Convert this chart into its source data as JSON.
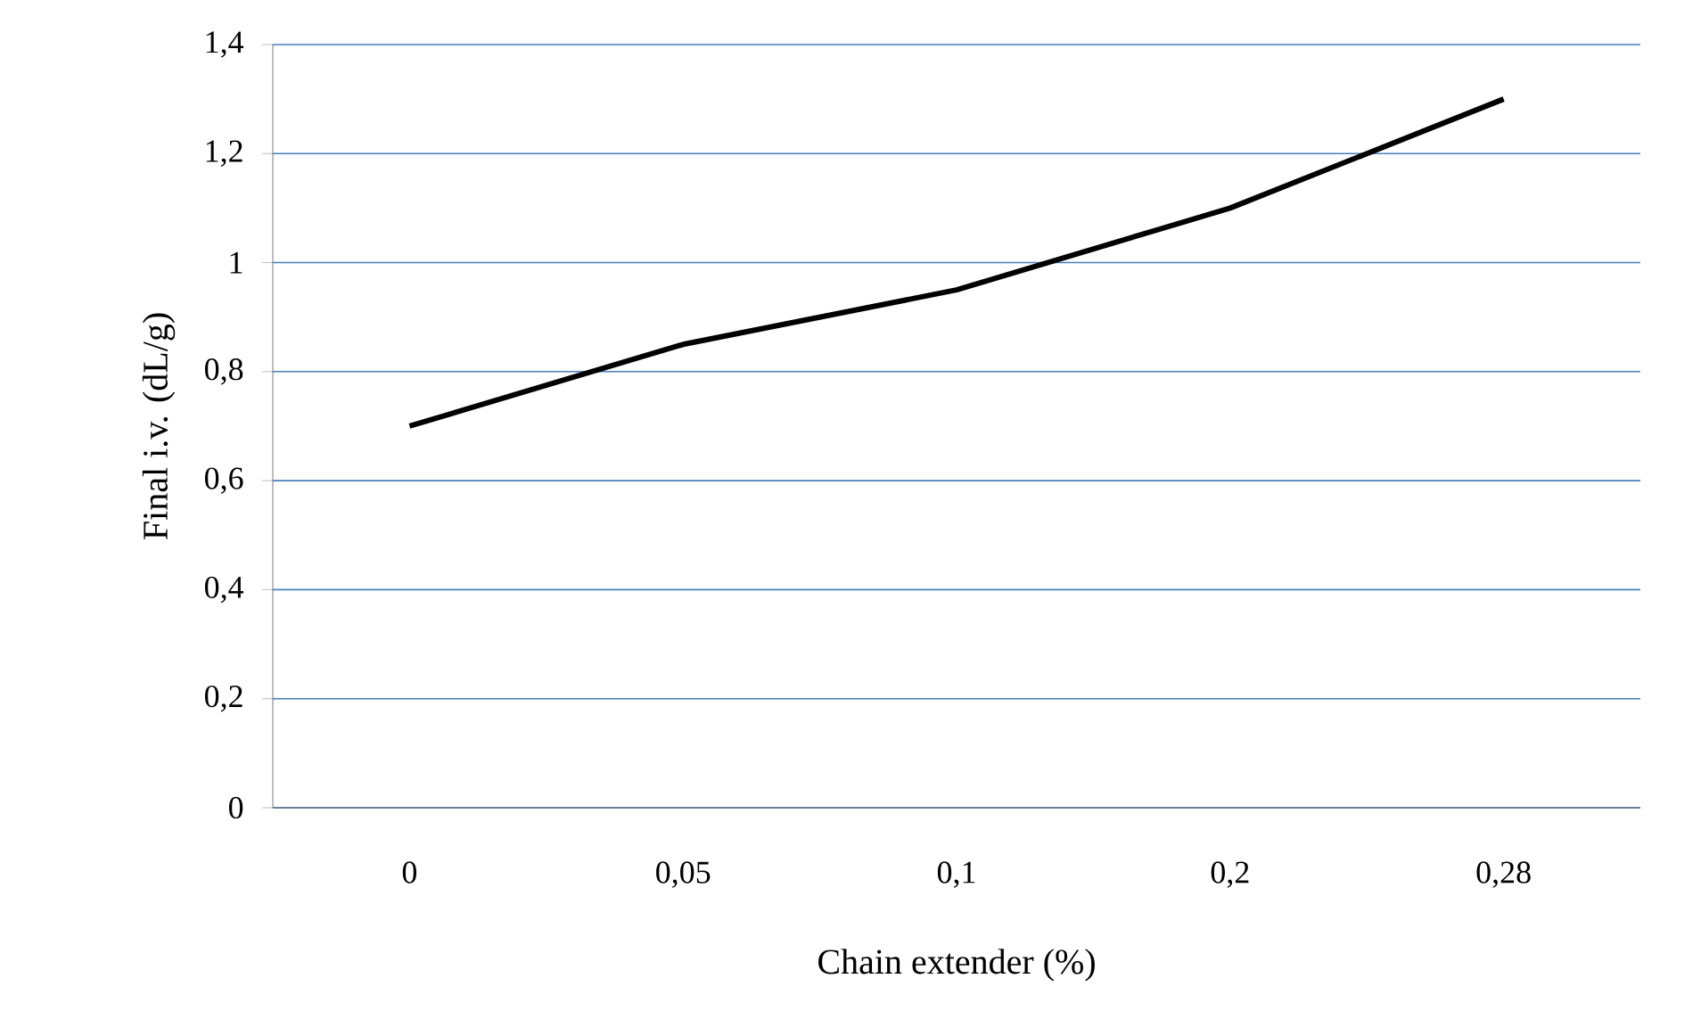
{
  "chart_data": {
    "type": "line",
    "xlabel": "Chain extender (%)",
    "ylabel": "Final i.v. (dL/g)",
    "categories": [
      "0",
      "0,05",
      "0,1",
      "0,2",
      "0,28"
    ],
    "series": [
      {
        "color": "#000000",
        "values": [
          0.7,
          0.85,
          0.95,
          1.1,
          1.3
        ]
      }
    ],
    "ylim": [
      0,
      1.4
    ],
    "yticks": [
      0,
      {
        "value": 0.2,
        "label": "0,2"
      },
      {
        "value": 0.4,
        "label": "0,4"
      },
      {
        "value": 0.6,
        "label": "0,6"
      },
      {
        "value": 0.8,
        "label": "0,8"
      },
      1,
      {
        "value": 1.2,
        "label": "1,2"
      },
      {
        "value": 1.4,
        "label": "1,4"
      }
    ],
    "grid": "y",
    "marker": "none",
    "line_style": "solid"
  }
}
